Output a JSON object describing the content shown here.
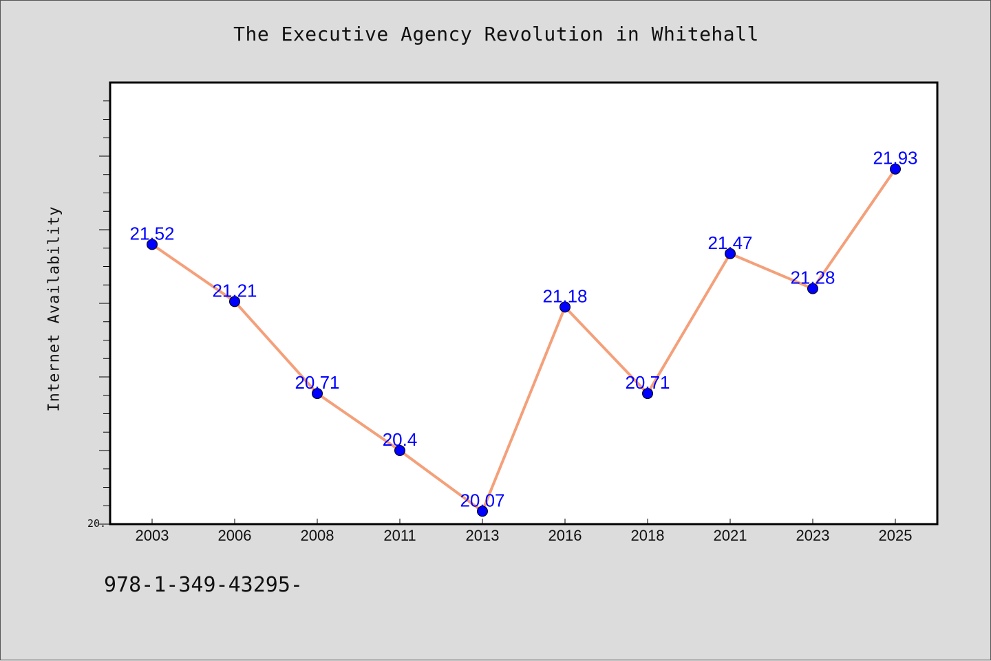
{
  "chart_data": {
    "type": "line",
    "title": "The Executive Agency Revolution in Whitehall",
    "xlabel": "",
    "ylabel": "Internet Availability",
    "categories": [
      "2003",
      "2006",
      "2008",
      "2011",
      "2013",
      "2016",
      "2018",
      "2021",
      "2023",
      "2025"
    ],
    "series": [
      {
        "values": [
          21.52,
          21.21,
          20.71,
          20.4,
          20.07,
          21.18,
          20.71,
          21.47,
          21.28,
          21.93
        ],
        "labels": [
          "21.52",
          "21.21",
          "20.71",
          "20.4",
          "20.07",
          "21.18",
          "20.71",
          "21.47",
          "21.28",
          "21.93"
        ]
      }
    ],
    "y_tick_label": "20.",
    "ylim": [
      20.0,
      22.4
    ],
    "grid": false,
    "line_color": "#f4a07a",
    "marker_color": "#0000ff",
    "label_color": "#0000ff"
  },
  "footnote": "978-1-349-43295-",
  "colors": {
    "background": "#dcdcdc",
    "plot_background": "#ffffff"
  }
}
